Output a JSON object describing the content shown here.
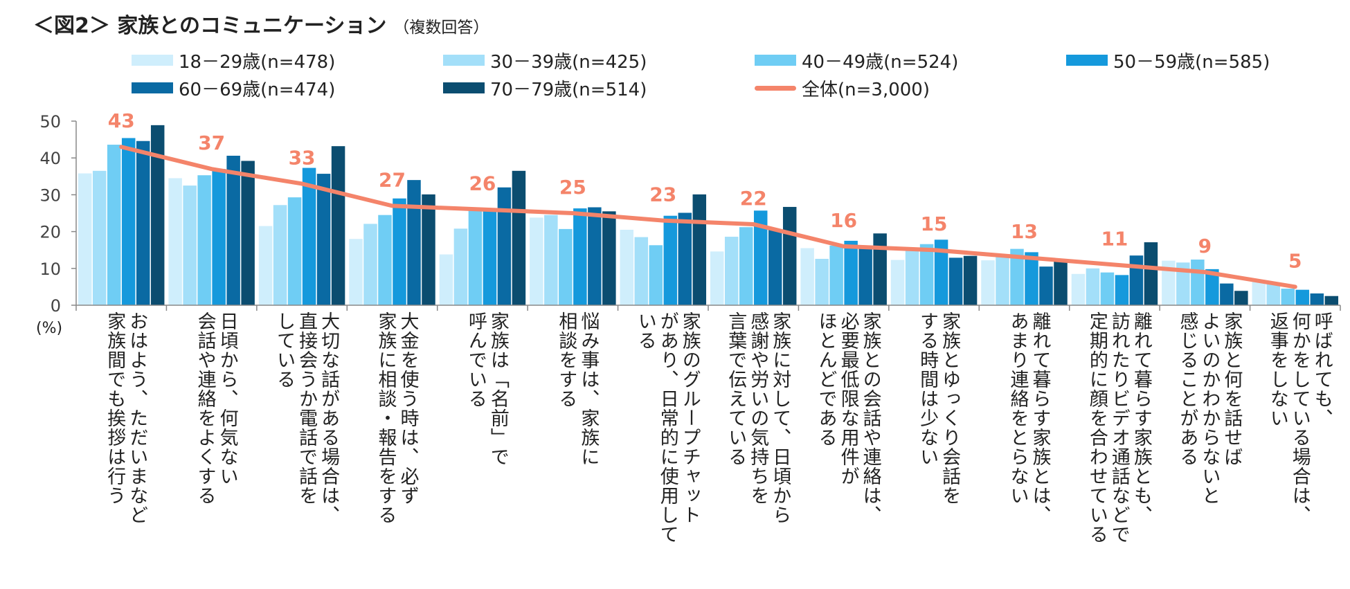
{
  "chart_data": {
    "type": "bar",
    "title": "＜図2＞ 家族とのコミュニケーション",
    "subtitle": "（複数回答）",
    "ylabel": "(%)",
    "ylim": [
      0,
      50
    ],
    "yticks": [
      "0",
      "10",
      "20",
      "30",
      "40",
      "50"
    ],
    "categories": [
      "おはよう、ただいまなど\n家族間でも挨拶は行う",
      "日頃から、何気ない\n会話や連絡をよくする",
      "大切な話がある場合は、\n直接会うか電話で話を\nしている",
      "大金を使う時は、必ず\n家族に相談・報告をする",
      "家族は「名前」で\n呼んでいる",
      "悩み事は、家族に\n相談をする",
      "家族のグループチャット\nがあり、日常的に使用して\nいる",
      "家族に対して、日頃から\n感謝や労いの気持ちを\n言葉で伝えている",
      "家族との会話や連絡は、\n必要最低限な用件が\nほとんどである",
      "家族とゆっくり会話を\nする時間は少ない",
      "離れて暮らす家族とは、\nあまり連絡をとらない",
      "離れて暮らす家族とも、\n訪れたりビデオ通話などで\n定期的に顔を合わせている",
      "家族と何を話せば\nよいのかわからないと\n感じることがある",
      "呼ばれても、\n何かをしている場合は、\n返事をしない"
    ],
    "series": [
      {
        "name": "18－29歳(n=478)",
        "color": "#cfeefc",
        "values": [
          35.8,
          34.5,
          21.5,
          18.0,
          13.8,
          23.8,
          20.5,
          14.6,
          15.5,
          12.3,
          12.2,
          8.5,
          12.1,
          6.9
        ]
      },
      {
        "name": "30－39歳(n=425)",
        "color": "#a3dff9",
        "values": [
          36.5,
          32.5,
          27.2,
          22.1,
          20.8,
          24.5,
          18.5,
          18.6,
          12.6,
          15.2,
          13.4,
          10.0,
          11.6,
          6.1
        ]
      },
      {
        "name": "40－49歳(n=524)",
        "color": "#6fcdf4",
        "values": [
          43.6,
          35.3,
          29.3,
          24.5,
          25.9,
          20.7,
          16.3,
          21.2,
          16.2,
          16.6,
          15.3,
          8.9,
          12.4,
          4.5
        ]
      },
      {
        "name": "50－59歳(n=585)",
        "color": "#1599dc",
        "values": [
          45.4,
          37.0,
          37.3,
          29.0,
          25.8,
          26.3,
          24.3,
          25.7,
          17.5,
          17.8,
          14.4,
          8.2,
          9.8,
          4.2
        ]
      },
      {
        "name": "60－69歳(n=474)",
        "color": "#0a6aa3",
        "values": [
          44.6,
          40.6,
          35.7,
          34.0,
          32.0,
          26.6,
          25.1,
          20.5,
          15.9,
          12.9,
          10.5,
          13.5,
          5.9,
          3.2
        ]
      },
      {
        "name": "70－79歳(n=514)",
        "color": "#0b4d70",
        "values": [
          48.9,
          39.2,
          43.2,
          30.1,
          36.5,
          25.5,
          30.1,
          26.7,
          19.5,
          13.4,
          12.0,
          17.1,
          3.9,
          2.5
        ]
      }
    ],
    "total": {
      "name": "全体(n=3,000)",
      "color": "#f4846a",
      "values": [
        43,
        37,
        33,
        27,
        26,
        25,
        23,
        22,
        16,
        15,
        13,
        11,
        9,
        5
      ]
    },
    "axis_color": "#888888",
    "grid": false,
    "legend_position": "top"
  }
}
